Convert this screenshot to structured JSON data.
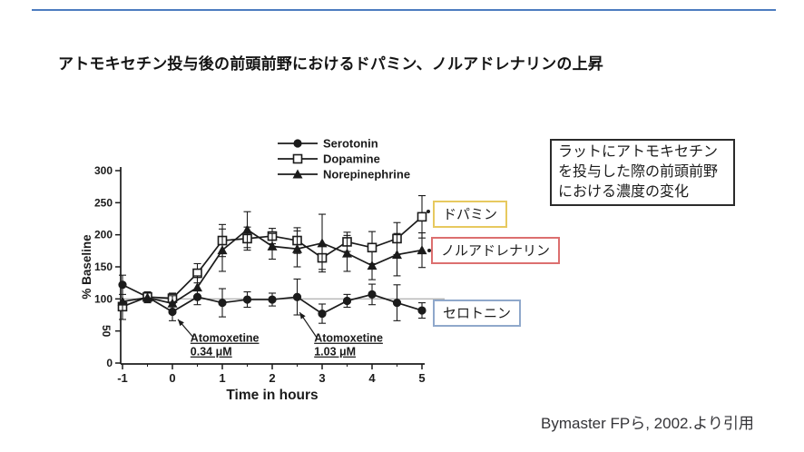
{
  "slide": {
    "title": "アトモキセチン投与後の前頭前野におけるドパミン、ノルアドレナリンの上昇",
    "accent_color": "#4c7cc0",
    "info_box": {
      "lines": [
        "ラットにアトモキセチン",
        "を投与した際の前頭前野",
        "における濃度の変化"
      ]
    },
    "callouts": [
      {
        "id": "dopamine",
        "label": "ドパミン",
        "border_color": "#e7c95f"
      },
      {
        "id": "noradrenaline",
        "label": "ノルアドレナリン",
        "border_color": "#dc6f6f"
      },
      {
        "id": "serotonin",
        "label": "セロトニン",
        "border_color": "#8fa8cb"
      }
    ],
    "citation": "Bymaster FPら, 2002.より引用"
  },
  "chart_data": {
    "type": "line",
    "title": "",
    "xlabel": "Time in hours",
    "ylabel": "% Baseline",
    "x": [
      -1,
      -0.5,
      0,
      0.5,
      1,
      1.5,
      2,
      2.5,
      3,
      3.5,
      4,
      4.5,
      5
    ],
    "xticks": [
      -1,
      0,
      1,
      2,
      3,
      4,
      5
    ],
    "yticks": [
      0,
      50,
      100,
      150,
      200,
      250,
      300
    ],
    "ylim": [
      0,
      300
    ],
    "xlim": [
      -1,
      5
    ],
    "grid": false,
    "legend_position": "top-center",
    "baseline_reference": 100,
    "series": [
      {
        "name": "Serotonin",
        "marker": "filled-circle",
        "values": [
          122,
          103,
          80,
          103,
          94,
          99,
          99,
          103,
          77,
          97,
          107,
          94,
          82
        ],
        "errors": [
          15,
          8,
          14,
          12,
          22,
          12,
          10,
          28,
          15,
          10,
          16,
          28,
          12
        ]
      },
      {
        "name": "Dopamine",
        "marker": "open-square",
        "values": [
          88,
          103,
          101,
          140,
          191,
          194,
          198,
          191,
          164,
          189,
          180,
          194,
          228
        ],
        "errors": [
          6,
          5,
          8,
          15,
          25,
          18,
          12,
          20,
          18,
          15,
          25,
          25,
          33
        ]
      },
      {
        "name": "Norepinephrine",
        "marker": "filled-triangle",
        "values": [
          96,
          102,
          93,
          118,
          176,
          208,
          182,
          178,
          187,
          171,
          152,
          169,
          176
        ],
        "errors": [
          28,
          8,
          12,
          18,
          33,
          28,
          20,
          28,
          45,
          28,
          22,
          33,
          27
        ]
      }
    ],
    "annotations": [
      {
        "lines": [
          "Atomoxetine",
          "0.34 μM"
        ],
        "text_t": 0.36,
        "text_v": 33,
        "arrow": {
          "from_t": 0.42,
          "from_v": 40,
          "to_t": 0.11,
          "to_v": 68
        }
      },
      {
        "lines": [
          "Atomoxetine",
          "1.03 μM"
        ],
        "text_t": 2.84,
        "text_v": 33,
        "arrow": {
          "from_t": 2.89,
          "from_v": 40,
          "to_t": 2.55,
          "to_v": 79
        }
      }
    ]
  }
}
